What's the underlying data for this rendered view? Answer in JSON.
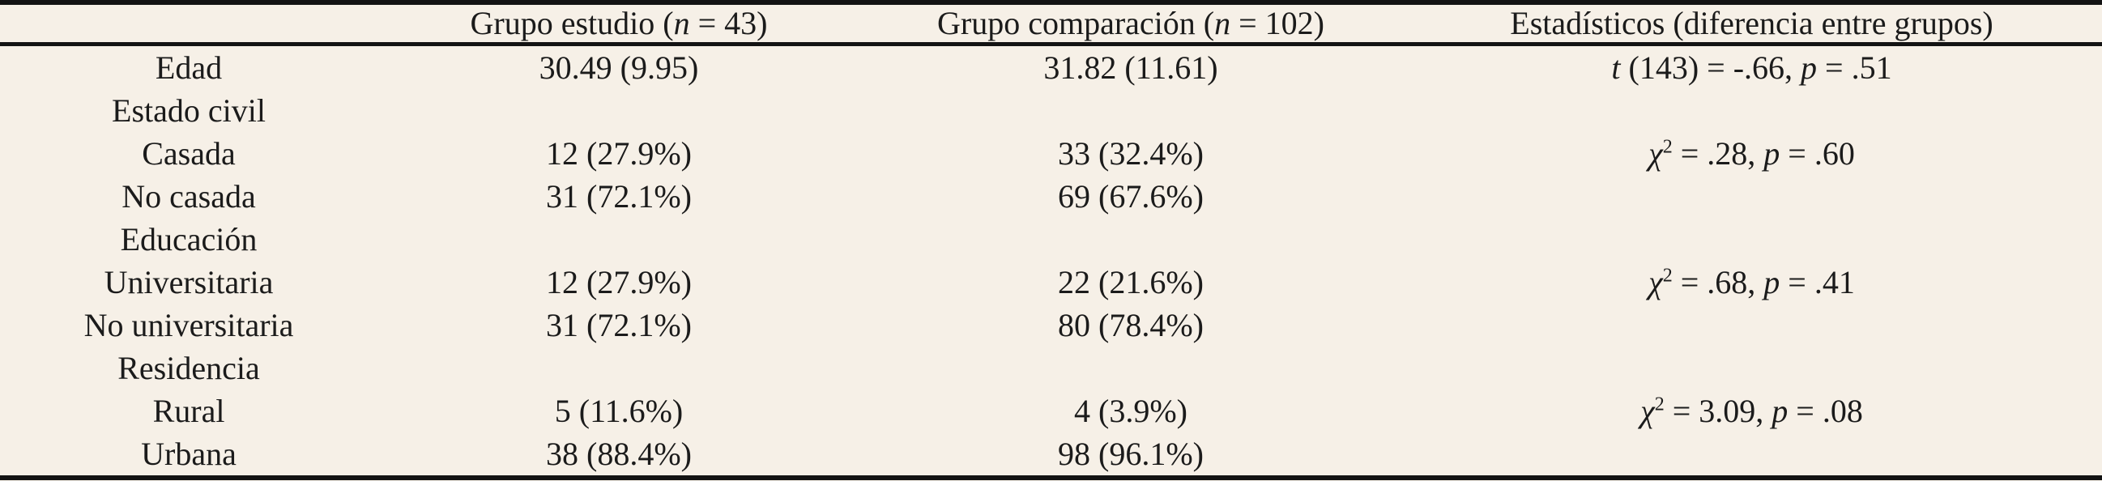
{
  "page": {
    "background_color": "#f6f0e7",
    "text_color": "#1b1b1b",
    "rule_color": "#131313"
  },
  "table": {
    "columns": [
      {
        "id": "label",
        "align": "left",
        "header": []
      },
      {
        "id": "estudio",
        "align": "center",
        "header": [
          {
            "t": "Grupo estudio ("
          },
          {
            "t": "n",
            "i": true
          },
          {
            "t": " = 43)"
          }
        ]
      },
      {
        "id": "comparacion",
        "align": "center",
        "header": [
          {
            "t": "Grupo comparación ("
          },
          {
            "t": "n",
            "i": true
          },
          {
            "t": " = 102)"
          }
        ]
      },
      {
        "id": "stats",
        "align": "center",
        "header": [
          {
            "t": "Estadísticos (diferencia entre grupos)"
          }
        ]
      }
    ],
    "rows": [
      {
        "kind": "data",
        "label": "Edad",
        "cells": {
          "estudio": [
            {
              "t": "30.49 (9.95)"
            }
          ],
          "comparacion": [
            {
              "t": "31.82 (11.61)"
            }
          ],
          "stats": [
            {
              "t": "t",
              "i": true
            },
            {
              "t": " (143) = -.66, "
            },
            {
              "t": "p",
              "i": true
            },
            {
              "t": " = .51"
            }
          ]
        }
      },
      {
        "kind": "section",
        "label": "Estado civil",
        "cells": {
          "estudio": [],
          "comparacion": [],
          "stats": []
        }
      },
      {
        "kind": "data",
        "label": "Casada",
        "cells": {
          "estudio": [
            {
              "t": "12 (27.9%)"
            }
          ],
          "comparacion": [
            {
              "t": "33 (32.4%)"
            }
          ],
          "stats": [
            {
              "t": "χ",
              "i": true
            },
            {
              "t": "2",
              "sup": true
            },
            {
              "t": " = .28, "
            },
            {
              "t": "p",
              "i": true
            },
            {
              "t": " = .60"
            }
          ]
        }
      },
      {
        "kind": "data",
        "label": "No casada",
        "cells": {
          "estudio": [
            {
              "t": "31 (72.1%)"
            }
          ],
          "comparacion": [
            {
              "t": "69 (67.6%)"
            }
          ],
          "stats": []
        }
      },
      {
        "kind": "section",
        "label": "Educación",
        "cells": {
          "estudio": [],
          "comparacion": [],
          "stats": []
        }
      },
      {
        "kind": "data",
        "label": "Universitaria",
        "cells": {
          "estudio": [
            {
              "t": "12 (27.9%)"
            }
          ],
          "comparacion": [
            {
              "t": "22 (21.6%)"
            }
          ],
          "stats": [
            {
              "t": "χ",
              "i": true
            },
            {
              "t": "2",
              "sup": true
            },
            {
              "t": " = .68, "
            },
            {
              "t": "p",
              "i": true
            },
            {
              "t": " = .41"
            }
          ]
        }
      },
      {
        "kind": "data",
        "label": "No universitaria",
        "cells": {
          "estudio": [
            {
              "t": "31 (72.1%)"
            }
          ],
          "comparacion": [
            {
              "t": "80 (78.4%)"
            }
          ],
          "stats": []
        }
      },
      {
        "kind": "section",
        "label": "Residencia",
        "cells": {
          "estudio": [],
          "comparacion": [],
          "stats": []
        }
      },
      {
        "kind": "data",
        "label": "Rural",
        "cells": {
          "estudio": [
            {
              "t": "5 (11.6%)"
            }
          ],
          "comparacion": [
            {
              "t": "4 (3.9%)"
            }
          ],
          "stats": [
            {
              "t": "χ",
              "i": true
            },
            {
              "t": "2",
              "sup": true
            },
            {
              "t": " = 3.09, "
            },
            {
              "t": "p",
              "i": true
            },
            {
              "t": " = .08"
            }
          ]
        }
      },
      {
        "kind": "data",
        "label": "Urbana",
        "cells": {
          "estudio": [
            {
              "t": "38 (88.4%)"
            }
          ],
          "comparacion": [
            {
              "t": "98 (96.1%)"
            }
          ],
          "stats": []
        }
      }
    ]
  }
}
